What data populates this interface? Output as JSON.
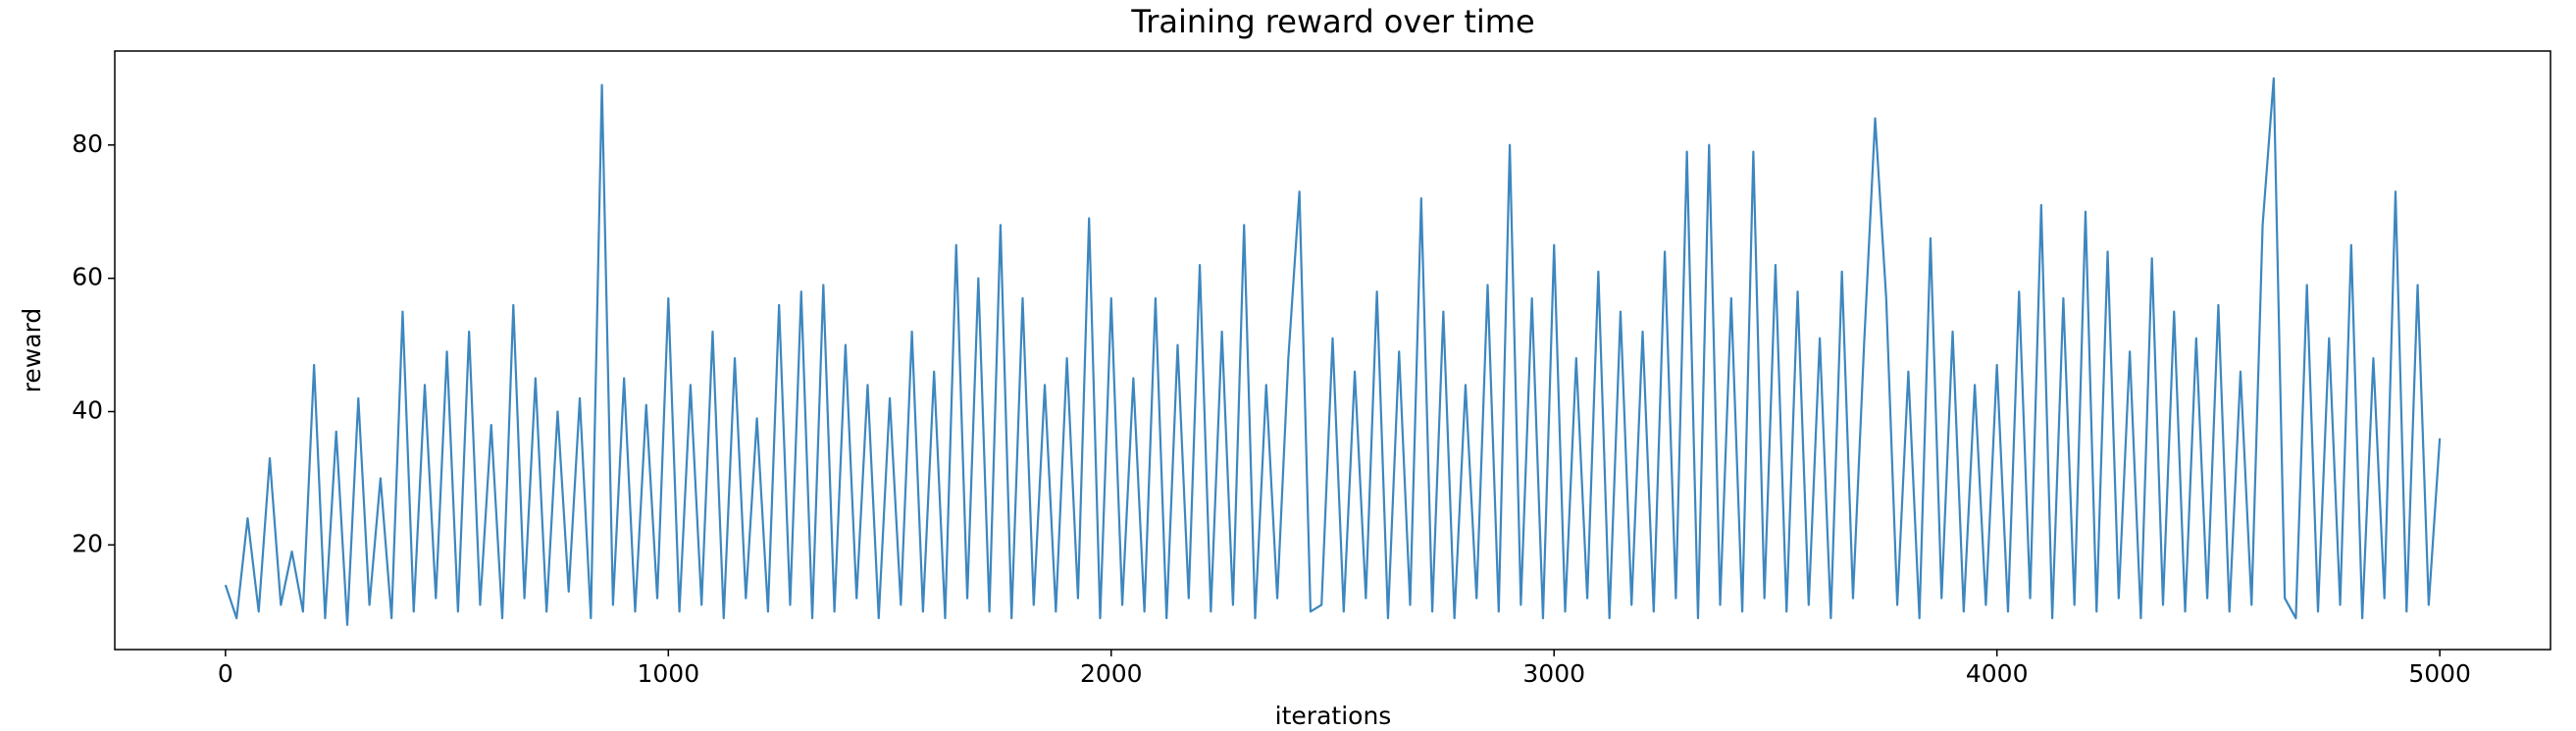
{
  "chart_data": {
    "type": "line",
    "title": "Training reward over time",
    "x_label": "iterations",
    "y_label": "reward",
    "x": [
      0,
      25,
      50,
      75,
      100,
      125,
      150,
      175,
      200,
      225,
      250,
      275,
      300,
      325,
      350,
      375,
      400,
      425,
      450,
      475,
      500,
      525,
      550,
      575,
      600,
      625,
      650,
      675,
      700,
      725,
      750,
      775,
      800,
      825,
      850,
      875,
      900,
      925,
      950,
      975,
      1000,
      1025,
      1050,
      1075,
      1100,
      1125,
      1150,
      1175,
      1200,
      1225,
      1250,
      1275,
      1300,
      1325,
      1350,
      1375,
      1400,
      1425,
      1450,
      1475,
      1500,
      1525,
      1550,
      1575,
      1600,
      1625,
      1650,
      1675,
      1700,
      1725,
      1750,
      1775,
      1800,
      1825,
      1850,
      1875,
      1900,
      1925,
      1950,
      1975,
      2000,
      2025,
      2050,
      2075,
      2100,
      2125,
      2150,
      2175,
      2200,
      2225,
      2250,
      2275,
      2300,
      2325,
      2350,
      2375,
      2400,
      2425,
      2450,
      2475,
      2500,
      2525,
      2550,
      2575,
      2600,
      2625,
      2650,
      2675,
      2700,
      2725,
      2750,
      2775,
      2800,
      2825,
      2850,
      2875,
      2900,
      2925,
      2950,
      2975,
      3000,
      3025,
      3050,
      3075,
      3100,
      3125,
      3150,
      3175,
      3200,
      3225,
      3250,
      3275,
      3300,
      3325,
      3350,
      3375,
      3400,
      3425,
      3450,
      3475,
      3500,
      3525,
      3550,
      3575,
      3600,
      3625,
      3650,
      3675,
      3700,
      3725,
      3750,
      3775,
      3800,
      3825,
      3850,
      3875,
      3900,
      3925,
      3950,
      3975,
      4000,
      4025,
      4050,
      4075,
      4100,
      4125,
      4150,
      4175,
      4200,
      4225,
      4250,
      4275,
      4300,
      4325,
      4350,
      4375,
      4400,
      4425,
      4450,
      4475,
      4500,
      4525,
      4550,
      4575,
      4600,
      4625,
      4650,
      4675,
      4700,
      4725,
      4750,
      4775,
      4800,
      4825,
      4850,
      4875,
      4900,
      4925,
      4950,
      4975,
      5000
    ],
    "series": [
      {
        "color": "#3d87bf",
        "values": [
          14,
          9,
          24,
          10,
          33,
          11,
          19,
          10,
          47,
          9,
          37,
          8,
          42,
          11,
          30,
          9,
          55,
          10,
          44,
          12,
          49,
          10,
          52,
          11,
          38,
          9,
          56,
          12,
          45,
          10,
          40,
          13,
          42,
          9,
          89,
          11,
          45,
          10,
          41,
          12,
          57,
          10,
          44,
          11,
          52,
          9,
          48,
          12,
          39,
          10,
          56,
          11,
          58,
          9,
          59,
          10,
          50,
          12,
          44,
          9,
          42,
          11,
          52,
          10,
          46,
          9,
          65,
          12,
          60,
          10,
          68,
          9,
          57,
          11,
          44,
          10,
          48,
          12,
          69,
          9,
          57,
          11,
          45,
          10,
          57,
          9,
          50,
          12,
          62,
          10,
          52,
          11,
          68,
          9,
          44,
          12,
          48,
          73,
          10,
          11,
          51,
          10,
          46,
          12,
          58,
          9,
          49,
          11,
          72,
          10,
          55,
          9,
          44,
          12,
          59,
          10,
          80,
          11,
          57,
          9,
          65,
          10,
          48,
          12,
          61,
          9,
          55,
          11,
          52,
          10,
          64,
          12,
          79,
          9,
          80,
          11,
          57,
          10,
          79,
          12,
          62,
          10,
          58,
          11,
          51,
          9,
          61,
          12,
          50,
          84,
          57,
          11,
          46,
          9,
          66,
          12,
          52,
          10,
          44,
          11,
          47,
          10,
          58,
          12,
          71,
          9,
          57,
          11,
          70,
          10,
          64,
          12,
          49,
          9,
          63,
          11,
          55,
          10,
          51,
          12,
          56,
          10,
          46,
          11,
          68,
          90,
          12,
          9,
          59,
          10,
          51,
          11,
          65,
          9,
          48,
          12,
          73,
          10,
          59,
          11,
          36
        ]
      }
    ],
    "xlim": [
      -250,
      5250
    ],
    "ylim": [
      4.3,
      94.1
    ],
    "xticks": [
      0,
      1000,
      2000,
      3000,
      4000,
      5000
    ],
    "yticks": [
      20,
      40,
      60,
      80
    ]
  }
}
